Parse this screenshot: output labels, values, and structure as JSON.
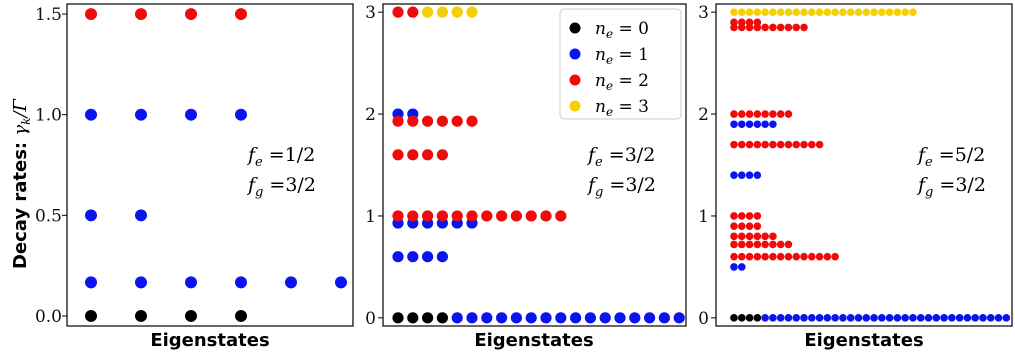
{
  "ylabel": {
    "prefix": "Decay rates:",
    "symbol": "γ",
    "sub": "k",
    "suffix": "/Γ"
  },
  "colors": {
    "n0": "#000000",
    "n1": "#0a14ee",
    "n2": "#f00a0a",
    "n3": "#f5d000"
  },
  "legend": [
    {
      "label": "n",
      "sub": "e",
      "eq": " = 0",
      "key": "n0"
    },
    {
      "label": "n",
      "sub": "e",
      "eq": " = 1",
      "key": "n1"
    },
    {
      "label": "n",
      "sub": "e",
      "eq": " = 2",
      "key": "n2"
    },
    {
      "label": "n",
      "sub": "e",
      "eq": " = 3",
      "key": "n3"
    }
  ],
  "chart_data": [
    {
      "type": "scatter",
      "xlabel": "Eigenstates",
      "ylim": [
        -0.05,
        1.55
      ],
      "yticks": [
        "0.0",
        "0.5",
        "1.0",
        "1.5"
      ],
      "ytick_values": [
        0.0,
        0.5,
        1.0,
        1.5
      ],
      "annotations": [
        {
          "sym": "f",
          "sub": "e",
          "val": " =1/2"
        },
        {
          "sym": "f",
          "sub": "g",
          "val": " =3/2"
        }
      ],
      "series": [
        {
          "key": "n0",
          "points": [
            [
              1,
              0
            ],
            [
              2,
              0
            ],
            [
              3,
              0
            ],
            [
              4,
              0
            ]
          ]
        },
        {
          "key": "n1",
          "points": [
            [
              1,
              1.0
            ],
            [
              2,
              1.0
            ],
            [
              3,
              1.0
            ],
            [
              4,
              1.0
            ],
            [
              1,
              0.5
            ],
            [
              2,
              0.5
            ],
            [
              1,
              0.1667
            ],
            [
              2,
              0.1667
            ],
            [
              3,
              0.1667
            ],
            [
              4,
              0.1667
            ],
            [
              5,
              0.1667
            ],
            [
              6,
              0.1667
            ]
          ]
        },
        {
          "key": "n2",
          "points": [
            [
              1,
              1.5
            ],
            [
              2,
              1.5
            ],
            [
              3,
              1.5
            ],
            [
              4,
              1.5
            ]
          ]
        }
      ]
    },
    {
      "type": "scatter",
      "xlabel": "Eigenstates",
      "ylim": [
        -0.08,
        3.08
      ],
      "yticks": [
        "0",
        "1",
        "2",
        "3"
      ],
      "ytick_values": [
        0,
        1,
        2,
        3
      ],
      "annotations": [
        {
          "sym": "f",
          "sub": "e",
          "val": " =3/2"
        },
        {
          "sym": "f",
          "sub": "g",
          "val": " =3/2"
        }
      ],
      "series": [
        {
          "key": "n0",
          "points": [
            [
              1,
              0
            ],
            [
              2,
              0
            ],
            [
              3,
              0
            ],
            [
              4,
              0
            ]
          ]
        },
        {
          "key": "n1",
          "points": [
            [
              5,
              0
            ],
            [
              6,
              0
            ],
            [
              7,
              0
            ],
            [
              8,
              0
            ],
            [
              9,
              0
            ],
            [
              10,
              0
            ],
            [
              11,
              0
            ],
            [
              12,
              0
            ],
            [
              13,
              0
            ],
            [
              14,
              0
            ],
            [
              15,
              0
            ],
            [
              16,
              0
            ],
            [
              17,
              0
            ],
            [
              18,
              0
            ],
            [
              19,
              0
            ],
            [
              20,
              0
            ],
            [
              1,
              0.6
            ],
            [
              2,
              0.6
            ],
            [
              3,
              0.6
            ],
            [
              4,
              0.6
            ],
            [
              1,
              0.93
            ],
            [
              2,
              0.93
            ],
            [
              3,
              0.93
            ],
            [
              4,
              0.93
            ],
            [
              5,
              0.93
            ],
            [
              6,
              0.93
            ],
            [
              1,
              2.0
            ],
            [
              2,
              2.0
            ]
          ]
        },
        {
          "key": "n2",
          "points": [
            [
              1,
              1.0
            ],
            [
              2,
              1.0
            ],
            [
              3,
              1.0
            ],
            [
              4,
              1.0
            ],
            [
              5,
              1.0
            ],
            [
              6,
              1.0
            ],
            [
              7,
              1.0
            ],
            [
              8,
              1.0
            ],
            [
              9,
              1.0
            ],
            [
              10,
              1.0
            ],
            [
              11,
              1.0
            ],
            [
              12,
              1.0
            ],
            [
              1,
              1.6
            ],
            [
              2,
              1.6
            ],
            [
              3,
              1.6
            ],
            [
              4,
              1.6
            ],
            [
              1,
              1.93
            ],
            [
              2,
              1.93
            ],
            [
              3,
              1.93
            ],
            [
              4,
              1.93
            ],
            [
              5,
              1.93
            ],
            [
              6,
              1.93
            ],
            [
              1,
              3.0
            ],
            [
              2,
              3.0
            ]
          ]
        },
        {
          "key": "n3",
          "points": [
            [
              3,
              3.0
            ],
            [
              4,
              3.0
            ],
            [
              5,
              3.0
            ],
            [
              6,
              3.0
            ]
          ]
        }
      ]
    },
    {
      "type": "scatter",
      "xlabel": "Eigenstates",
      "ylim": [
        -0.08,
        3.08
      ],
      "yticks": [
        "0",
        "1",
        "2",
        "3"
      ],
      "ytick_values": [
        0,
        1,
        2,
        3
      ],
      "annotations": [
        {
          "sym": "f",
          "sub": "e",
          "val": " =5/2"
        },
        {
          "sym": "f",
          "sub": "g",
          "val": " =3/2"
        }
      ],
      "series": [
        {
          "key": "n0",
          "points": [
            [
              1,
              0
            ],
            [
              2,
              0
            ],
            [
              3,
              0
            ],
            [
              4,
              0
            ]
          ]
        },
        {
          "key": "n1",
          "points": [
            [
              5,
              0
            ],
            [
              6,
              0
            ],
            [
              7,
              0
            ],
            [
              8,
              0
            ],
            [
              9,
              0
            ],
            [
              10,
              0
            ],
            [
              11,
              0
            ],
            [
              12,
              0
            ],
            [
              13,
              0
            ],
            [
              14,
              0
            ],
            [
              15,
              0
            ],
            [
              16,
              0
            ],
            [
              17,
              0
            ],
            [
              18,
              0
            ],
            [
              19,
              0
            ],
            [
              20,
              0
            ],
            [
              21,
              0
            ],
            [
              22,
              0
            ],
            [
              23,
              0
            ],
            [
              24,
              0
            ],
            [
              25,
              0
            ],
            [
              26,
              0
            ],
            [
              27,
              0
            ],
            [
              28,
              0
            ],
            [
              29,
              0
            ],
            [
              30,
              0
            ],
            [
              31,
              0
            ],
            [
              32,
              0
            ],
            [
              33,
              0
            ],
            [
              34,
              0
            ],
            [
              35,
              0
            ],
            [
              36,
              0
            ],
            [
              1,
              0.5
            ],
            [
              2,
              0.5
            ],
            [
              1,
              1.4
            ],
            [
              2,
              1.4
            ],
            [
              3,
              1.4
            ],
            [
              4,
              1.4
            ],
            [
              1,
              1.9
            ],
            [
              2,
              1.9
            ],
            [
              3,
              1.9
            ],
            [
              4,
              1.9
            ],
            [
              5,
              1.9
            ],
            [
              6,
              1.9
            ]
          ]
        },
        {
          "key": "n2",
          "points": [
            [
              1,
              0.6
            ],
            [
              2,
              0.6
            ],
            [
              3,
              0.6
            ],
            [
              4,
              0.6
            ],
            [
              5,
              0.6
            ],
            [
              6,
              0.6
            ],
            [
              7,
              0.6
            ],
            [
              8,
              0.6
            ],
            [
              9,
              0.6
            ],
            [
              10,
              0.6
            ],
            [
              11,
              0.6
            ],
            [
              12,
              0.6
            ],
            [
              13,
              0.6
            ],
            [
              14,
              0.6
            ],
            [
              1,
              0.72
            ],
            [
              2,
              0.72
            ],
            [
              3,
              0.72
            ],
            [
              4,
              0.72
            ],
            [
              5,
              0.72
            ],
            [
              6,
              0.72
            ],
            [
              7,
              0.72
            ],
            [
              8,
              0.72
            ],
            [
              1,
              0.8
            ],
            [
              2,
              0.8
            ],
            [
              3,
              0.8
            ],
            [
              4,
              0.8
            ],
            [
              5,
              0.8
            ],
            [
              6,
              0.8
            ],
            [
              1,
              0.9
            ],
            [
              2,
              0.9
            ],
            [
              3,
              0.9
            ],
            [
              4,
              0.9
            ],
            [
              1,
              1.0
            ],
            [
              2,
              1.0
            ],
            [
              3,
              1.0
            ],
            [
              4,
              1.0
            ],
            [
              1,
              1.7
            ],
            [
              2,
              1.7
            ],
            [
              3,
              1.7
            ],
            [
              4,
              1.7
            ],
            [
              5,
              1.7
            ],
            [
              6,
              1.7
            ],
            [
              7,
              1.7
            ],
            [
              8,
              1.7
            ],
            [
              9,
              1.7
            ],
            [
              10,
              1.7
            ],
            [
              11,
              1.7
            ],
            [
              12,
              1.7
            ],
            [
              1,
              2.0
            ],
            [
              2,
              2.0
            ],
            [
              3,
              2.0
            ],
            [
              4,
              2.0
            ],
            [
              5,
              2.0
            ],
            [
              6,
              2.0
            ],
            [
              7,
              2.0
            ],
            [
              8,
              2.0
            ],
            [
              1,
              2.85
            ],
            [
              2,
              2.85
            ],
            [
              3,
              2.85
            ],
            [
              4,
              2.85
            ],
            [
              5,
              2.85
            ],
            [
              6,
              2.85
            ],
            [
              7,
              2.85
            ],
            [
              8,
              2.85
            ],
            [
              9,
              2.85
            ],
            [
              10,
              2.85
            ],
            [
              1,
              2.9
            ],
            [
              2,
              2.9
            ],
            [
              3,
              2.9
            ],
            [
              4,
              2.9
            ]
          ]
        },
        {
          "key": "n3",
          "points": [
            [
              1,
              3.0
            ],
            [
              2,
              3.0
            ],
            [
              3,
              3.0
            ],
            [
              4,
              3.0
            ],
            [
              5,
              3.0
            ],
            [
              6,
              3.0
            ],
            [
              7,
              3.0
            ],
            [
              8,
              3.0
            ],
            [
              9,
              3.0
            ],
            [
              10,
              3.0
            ],
            [
              11,
              3.0
            ],
            [
              12,
              3.0
            ],
            [
              13,
              3.0
            ],
            [
              14,
              3.0
            ],
            [
              15,
              3.0
            ],
            [
              16,
              3.0
            ],
            [
              17,
              3.0
            ],
            [
              18,
              3.0
            ],
            [
              19,
              3.0
            ],
            [
              20,
              3.0
            ],
            [
              21,
              3.0
            ],
            [
              22,
              3.0
            ],
            [
              23,
              3.0
            ],
            [
              24,
              3.0
            ]
          ]
        }
      ]
    }
  ]
}
